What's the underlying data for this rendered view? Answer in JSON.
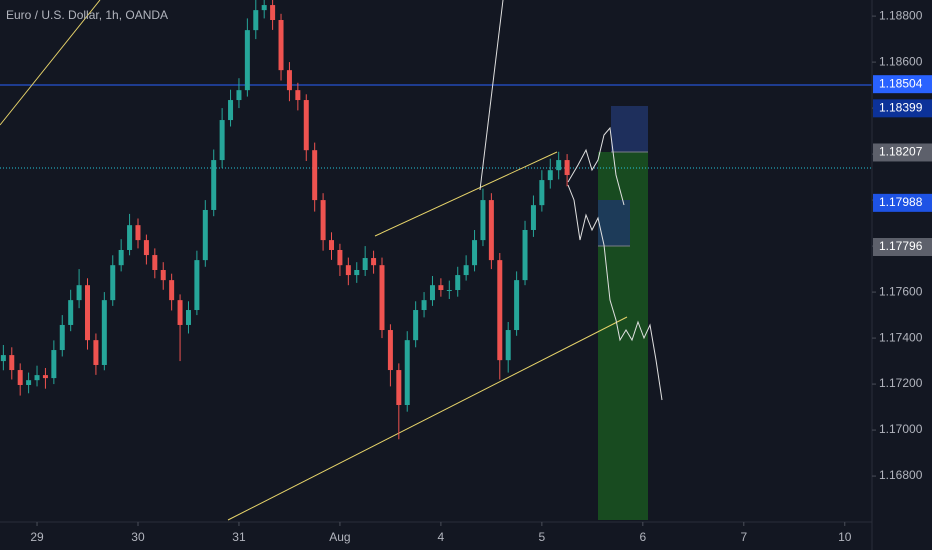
{
  "chart_data": {
    "type": "candlestick",
    "title": "Euro / U.S. Dollar, 1h, OANDA",
    "up_color": "#26a69a",
    "down_color": "#ef5350",
    "xlim": [
      -8.8,
      198
    ],
    "ylim": [
      1.16609,
      1.1887
    ],
    "xticks": [
      {
        "value": 0,
        "label": "29"
      },
      {
        "value": 24,
        "label": "30"
      },
      {
        "value": 48,
        "label": "31"
      },
      {
        "value": 72,
        "label": "Aug"
      },
      {
        "value": 96,
        "label": "4"
      },
      {
        "value": 120,
        "label": "5"
      },
      {
        "value": 144,
        "label": "6"
      },
      {
        "value": 168,
        "label": "7"
      },
      {
        "value": 192,
        "label": "10"
      }
    ],
    "yticks": [
      {
        "value": 1.188,
        "label": "1.18800"
      },
      {
        "value": 1.186,
        "label": "1.18600"
      },
      {
        "value": 1.184,
        "label": "1.18400"
      },
      {
        "value": 1.182,
        "label": "1.18200"
      },
      {
        "value": 1.18,
        "label": "1.18000"
      },
      {
        "value": 1.178,
        "label": "1.17800"
      },
      {
        "value": 1.176,
        "label": "1.17600"
      },
      {
        "value": 1.174,
        "label": "1.17400"
      },
      {
        "value": 1.172,
        "label": "1.17200"
      },
      {
        "value": 1.17,
        "label": "1.17000"
      },
      {
        "value": 1.168,
        "label": "1.16800"
      }
    ],
    "price_labels": [
      {
        "value": 1.18504,
        "color": "#2962ff"
      },
      {
        "value": 1.18399,
        "color": "#0c3299"
      },
      {
        "value": 1.18207,
        "color": "#5d606b"
      },
      {
        "value": 1.17988,
        "color": "#1e53e5"
      },
      {
        "value": 1.17796,
        "color": "#5d606b"
      }
    ],
    "x": [
      -8,
      -6,
      -4,
      -2,
      0,
      2,
      4,
      6,
      8,
      10,
      12,
      14,
      16,
      18,
      20,
      22,
      24,
      26,
      28,
      30,
      32,
      34,
      36,
      38,
      40,
      42,
      44,
      46,
      48,
      50,
      52,
      54,
      56,
      58,
      60,
      62,
      64,
      66,
      68,
      70,
      72,
      74,
      76,
      78,
      80,
      82,
      84,
      86,
      88,
      90,
      92,
      94,
      96,
      98,
      100,
      102,
      104,
      106,
      108,
      110,
      112,
      114,
      116,
      118,
      120,
      122,
      124,
      126
    ],
    "candles": [
      [
        1.173,
        1.1737,
        1.1726,
        1.17326
      ],
      [
        1.17326,
        1.1736,
        1.1722,
        1.17261
      ],
      [
        1.17261,
        1.1729,
        1.1715,
        1.17196
      ],
      [
        1.17196,
        1.1725,
        1.1716,
        1.17217
      ],
      [
        1.17217,
        1.1728,
        1.1719,
        1.17239
      ],
      [
        1.17239,
        1.1727,
        1.1718,
        1.17226
      ],
      [
        1.17226,
        1.1739,
        1.172,
        1.17348
      ],
      [
        1.17348,
        1.175,
        1.1732,
        1.17457
      ],
      [
        1.17457,
        1.1761,
        1.1743,
        1.17565
      ],
      [
        1.17565,
        1.177,
        1.1753,
        1.1763
      ],
      [
        1.1763,
        1.1766,
        1.1735,
        1.17391
      ],
      [
        1.17391,
        1.1742,
        1.1724,
        1.17283
      ],
      [
        1.17283,
        1.176,
        1.1726,
        1.17565
      ],
      [
        1.17565,
        1.1776,
        1.1754,
        1.17717
      ],
      [
        1.17717,
        1.1783,
        1.1769,
        1.17783
      ],
      [
        1.17783,
        1.1794,
        1.1776,
        1.17891
      ],
      [
        1.17891,
        1.1792,
        1.1779,
        1.17826
      ],
      [
        1.17826,
        1.1785,
        1.1772,
        1.17761
      ],
      [
        1.17761,
        1.1779,
        1.1766,
        1.17696
      ],
      [
        1.17696,
        1.1773,
        1.1761,
        1.17652
      ],
      [
        1.17652,
        1.1768,
        1.1752,
        1.17565
      ],
      [
        1.17565,
        1.1759,
        1.173,
        1.17457
      ],
      [
        1.17457,
        1.1756,
        1.1742,
        1.17522
      ],
      [
        1.17522,
        1.1778,
        1.175,
        1.17739
      ],
      [
        1.17739,
        1.18,
        1.1771,
        1.17957
      ],
      [
        1.17957,
        1.1822,
        1.1793,
        1.18174
      ],
      [
        1.18174,
        1.184,
        1.1814,
        1.18348
      ],
      [
        1.18348,
        1.1848,
        1.1832,
        1.18435
      ],
      [
        1.18435,
        1.1853,
        1.184,
        1.18478
      ],
      [
        1.18478,
        1.1879,
        1.1845,
        1.18739
      ],
      [
        1.18739,
        1.1888,
        1.187,
        1.18826
      ],
      [
        1.18826,
        1.1888,
        1.1879,
        1.18848
      ],
      [
        1.18848,
        1.1887,
        1.1874,
        1.18783
      ],
      [
        1.18783,
        1.1881,
        1.1852,
        1.18565
      ],
      [
        1.18565,
        1.186,
        1.1843,
        1.18478
      ],
      [
        1.18478,
        1.1851,
        1.1839,
        1.18435
      ],
      [
        1.18435,
        1.1846,
        1.1817,
        1.18217
      ],
      [
        1.18217,
        1.1825,
        1.1795,
        1.18
      ],
      [
        1.18,
        1.1803,
        1.1778,
        1.17826
      ],
      [
        1.17826,
        1.1786,
        1.1774,
        1.17783
      ],
      [
        1.17783,
        1.1781,
        1.1767,
        1.17717
      ],
      [
        1.17717,
        1.1775,
        1.1763,
        1.17674
      ],
      [
        1.17674,
        1.1773,
        1.1764,
        1.17696
      ],
      [
        1.17696,
        1.178,
        1.1767,
        1.17748
      ],
      [
        1.17748,
        1.1778,
        1.1768,
        1.17717
      ],
      [
        1.17717,
        1.1775,
        1.174,
        1.17435
      ],
      [
        1.17435,
        1.1746,
        1.1719,
        1.17261
      ],
      [
        1.17261,
        1.1729,
        1.1696,
        1.17109
      ],
      [
        1.17109,
        1.1743,
        1.1708,
        1.17391
      ],
      [
        1.17391,
        1.1756,
        1.1736,
        1.17522
      ],
      [
        1.17522,
        1.176,
        1.1749,
        1.17565
      ],
      [
        1.17565,
        1.1767,
        1.1754,
        1.1763
      ],
      [
        1.1763,
        1.1766,
        1.1758,
        1.17609
      ],
      [
        1.17609,
        1.1765,
        1.1757,
        1.17609
      ],
      [
        1.17609,
        1.1771,
        1.1758,
        1.17674
      ],
      [
        1.17674,
        1.1776,
        1.1765,
        1.17717
      ],
      [
        1.17717,
        1.1787,
        1.1769,
        1.17826
      ],
      [
        1.17826,
        1.1805,
        1.178,
        1.18
      ],
      [
        1.18,
        1.1803,
        1.177,
        1.17739
      ],
      [
        1.17739,
        1.1777,
        1.1722,
        1.17304
      ],
      [
        1.17304,
        1.1747,
        1.1725,
        1.17435
      ],
      [
        1.17435,
        1.1769,
        1.1741,
        1.17652
      ],
      [
        1.17652,
        1.1791,
        1.1763,
        1.1787
      ],
      [
        1.1787,
        1.1802,
        1.1784,
        1.17978
      ],
      [
        1.17978,
        1.1813,
        1.1795,
        1.18087
      ],
      [
        1.18087,
        1.1818,
        1.1805,
        1.1813
      ],
      [
        1.1813,
        1.1821,
        1.1809,
        1.18174
      ],
      [
        1.18174,
        1.182,
        1.1806,
        1.18109
      ]
    ]
  }
}
